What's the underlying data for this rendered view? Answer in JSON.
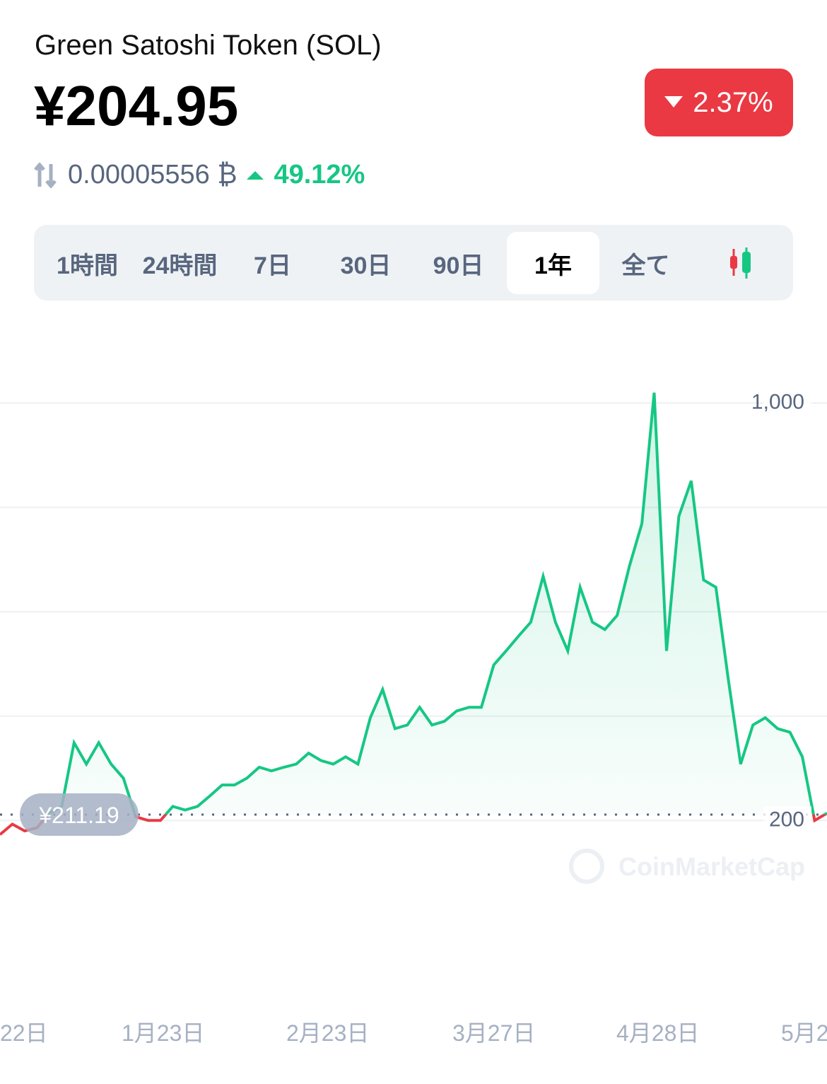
{
  "header": {
    "title": "Green Satoshi Token (SOL)",
    "price": "¥204.95",
    "change_24h": "2.37%",
    "btc_price": "0.00005556 ₿",
    "btc_change": "49.12%"
  },
  "tabs": {
    "items": [
      "1時間",
      "24時間",
      "7日",
      "30日",
      "90日",
      "1年",
      "全て"
    ],
    "active": 5
  },
  "chart": {
    "type": "line",
    "reference_label": "¥211.19",
    "reference_value": 211.19,
    "watermark": "CoinMarketCap",
    "values": [
      173,
      193,
      180,
      186,
      214,
      227,
      349,
      308,
      349,
      308,
      281,
      207,
      200,
      200,
      227,
      220,
      227,
      247,
      268,
      268,
      281,
      302,
      295,
      302,
      308,
      329,
      315,
      308,
      322,
      308,
      397,
      451,
      376,
      383,
      417,
      383,
      390,
      410,
      417,
      417,
      498,
      525,
      553,
      580,
      668,
      580,
      525,
      647,
      580,
      566,
      593,
      688,
      769,
      1020,
      525,
      783,
      851,
      661,
      647,
      471,
      308,
      383,
      397,
      376,
      369,
      322,
      200,
      214
    ],
    "ylim": [
      92,
      1122
    ],
    "yticks": [
      {
        "value": 1000,
        "label": "1,000"
      },
      200
    ],
    "gridlines": [
      400,
      600,
      800
    ],
    "up_color": "#16c784",
    "down_color": "#ea3943",
    "x_labels": [
      "22日",
      "1月23日",
      "2月23日",
      "3月27日",
      "4月28日",
      "5月2"
    ]
  }
}
